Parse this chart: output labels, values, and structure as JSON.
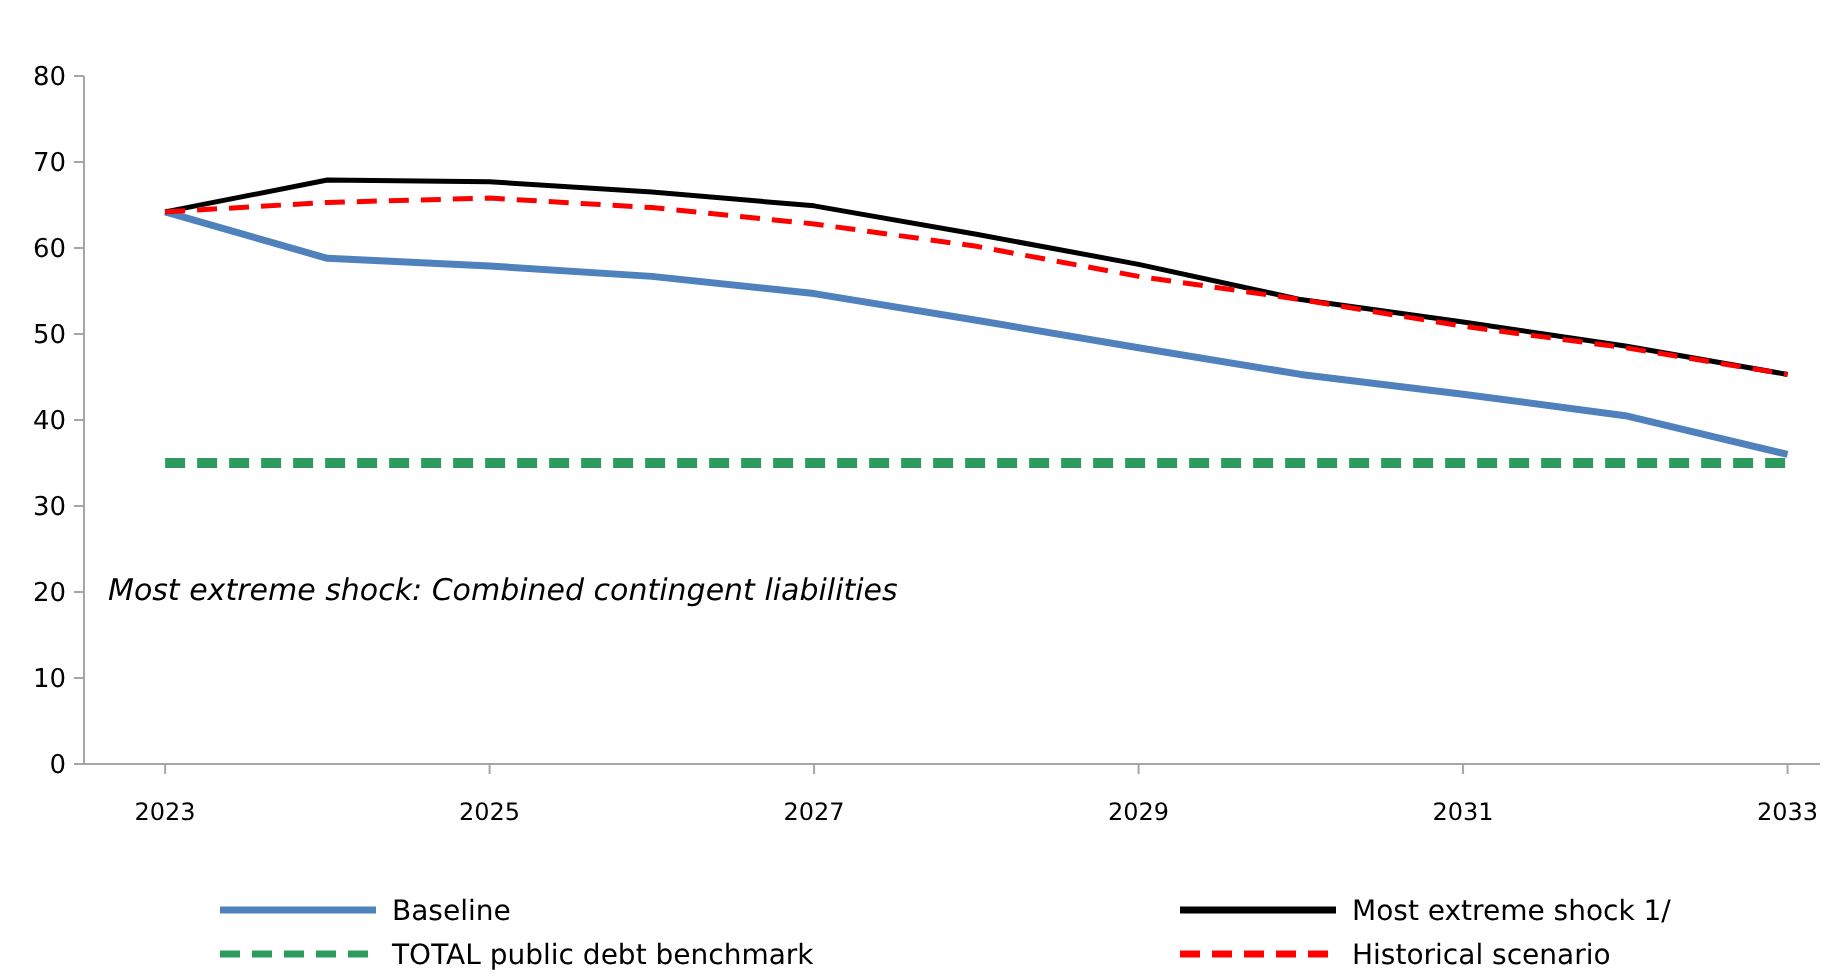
{
  "chart_data": {
    "type": "line",
    "x": [
      2023,
      2024,
      2025,
      2026,
      2027,
      2028,
      2029,
      2030,
      2031,
      2032,
      2033
    ],
    "series": [
      {
        "name": "Baseline",
        "color": "#4f81bd",
        "line_style": "solid",
        "values": [
          64.2,
          58.8,
          57.9,
          56.7,
          54.7,
          51.6,
          48.4,
          45.3,
          43,
          40.5,
          36
        ]
      },
      {
        "name": "Most extreme shock 1/",
        "color": "#000000",
        "line_style": "solid",
        "values": [
          64.2,
          67.9,
          67.7,
          66.5,
          64.9,
          61.6,
          58.1,
          54,
          51.4,
          48.6,
          45.3
        ]
      },
      {
        "name": "TOTAL public debt benchmark",
        "color": "#2e9b5e",
        "line_style": "dashed",
        "values": [
          35,
          35,
          35,
          35,
          35,
          35,
          35,
          35,
          35,
          35,
          35
        ]
      },
      {
        "name": "Historical scenario",
        "color": "#ff0000",
        "line_style": "dashed",
        "values": [
          64.2,
          65.3,
          65.8,
          64.7,
          62.8,
          60.2,
          56.7,
          54,
          50.9,
          48.4,
          45.3
        ]
      }
    ],
    "xlim": [
      2022.5,
      2033.2
    ],
    "xticks": [
      2023,
      2025,
      2027,
      2029,
      2031,
      2033
    ],
    "ylim": [
      0,
      80
    ],
    "yticks": [
      0,
      10,
      20,
      30,
      40,
      50,
      60,
      70,
      80
    ],
    "grid": false,
    "legend": "bottom",
    "annotations": [
      "Most extreme shock: Combined contingent liabilities"
    ]
  }
}
